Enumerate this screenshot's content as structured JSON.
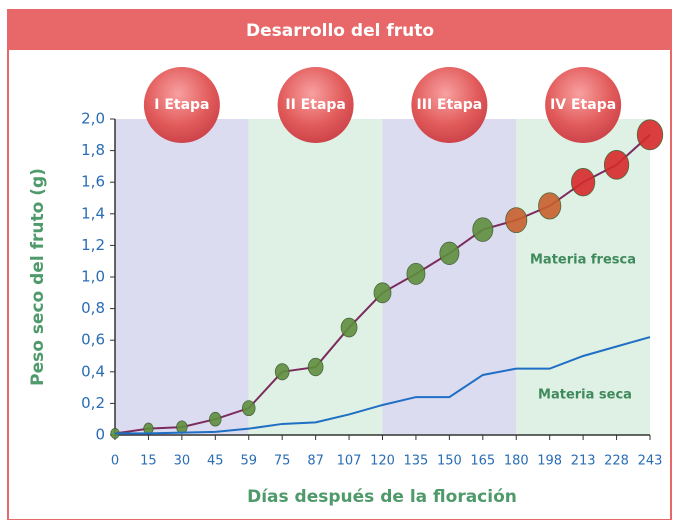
{
  "chart_data": {
    "type": "line",
    "title": "Desarrollo del fruto",
    "x_label": "Días después de la floración",
    "y_label": "Peso seco del fruto (g)",
    "categories": [
      0,
      15,
      30,
      45,
      59,
      75,
      87,
      107,
      120,
      135,
      150,
      165,
      180,
      198,
      213,
      228,
      243
    ],
    "series": [
      {
        "name": "Materia fresca",
        "color": "#7b2b5e",
        "values": [
          0.01,
          0.04,
          0.05,
          0.1,
          0.17,
          0.4,
          0.43,
          0.68,
          0.9,
          1.02,
          1.15,
          1.3,
          1.36,
          1.45,
          1.6,
          1.71,
          1.9
        ]
      },
      {
        "name": "Materia seca",
        "color": "#1f6fc4",
        "values": [
          0.01,
          0.01,
          0.015,
          0.02,
          0.04,
          0.07,
          0.08,
          0.13,
          0.19,
          0.24,
          0.24,
          0.38,
          0.42,
          0.42,
          0.5,
          0.56,
          0.62
        ]
      }
    ],
    "stages": [
      {
        "label": "I Etapa",
        "from": 0,
        "to": 59,
        "color": "#dcdcf0"
      },
      {
        "label": "II Etapa",
        "from": 59,
        "to": 120,
        "color": "#dff0e4"
      },
      {
        "label": "III Etapa",
        "from": 120,
        "to": 180,
        "color": "#dcdcf0"
      },
      {
        "label": "IV Etapa",
        "from": 180,
        "to": 243,
        "color": "#dff0e4"
      }
    ],
    "ylim": [
      0,
      2
    ],
    "yticks": [
      0,
      {
        "value": 0.2,
        "label": "0,2"
      },
      {
        "value": 0.4,
        "label": "0,4"
      },
      {
        "value": 0.6,
        "label": "0,6"
      },
      {
        "value": 0.8,
        "label": "0,8"
      },
      {
        "value": 1,
        "label": "1,0"
      },
      {
        "value": 1.2,
        "label": "1,2"
      },
      {
        "value": 1.4,
        "label": "1,4"
      },
      {
        "value": 1.6,
        "label": "1,6"
      },
      {
        "value": 1.8,
        "label": "1,8"
      },
      {
        "value": 2,
        "label": "2,0"
      }
    ]
  }
}
